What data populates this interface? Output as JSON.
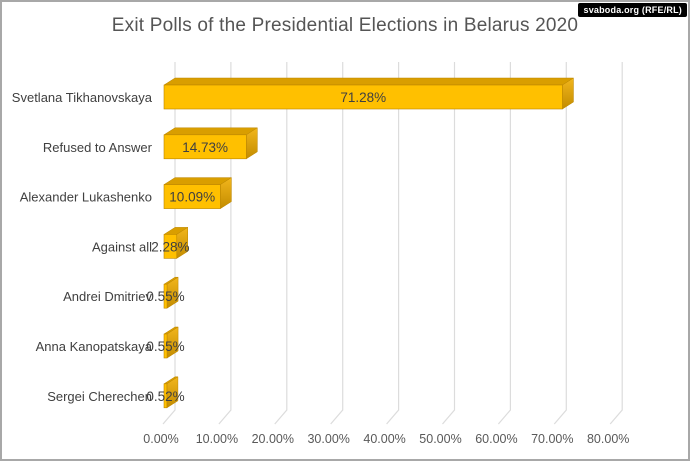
{
  "page": {
    "watermark": "svaboda.org (RFE/RL)"
  },
  "chart_data": {
    "type": "bar",
    "orientation": "horizontal",
    "style": "3d",
    "title": "Exit Polls of the Presidential Elections in Belarus 2020",
    "categories": [
      "Svetlana Tikhanovskaya",
      "Refused to Answer",
      "Alexander Lukashenko",
      "Against all",
      "Andrei Dmitriev",
      "Anna Kanopatskaya",
      "Sergei Cherechen"
    ],
    "values": [
      71.28,
      14.73,
      10.09,
      2.28,
      0.55,
      0.55,
      0.52
    ],
    "value_labels": [
      "71.28%",
      "14.73%",
      "10.09%",
      "2.28%",
      "0.55%",
      "0.55%",
      "0.52%"
    ],
    "x_tick_labels": [
      "0.00%",
      "10.00%",
      "20.00%",
      "30.00%",
      "40.00%",
      "50.00%",
      "60.00%",
      "70.00%",
      "80.00%"
    ],
    "xlim": [
      0,
      80
    ],
    "xlabel": "",
    "ylabel": "",
    "grid": true,
    "legend": false,
    "colors": {
      "bar_face": "#FFC000",
      "bar_top": "#D99E00",
      "bar_side_light": "#F2B61C",
      "bar_side_dark": "#C38C00",
      "bar_outline": "#BC8600",
      "gridline": "#DCDCDC",
      "label_text": "#404040",
      "tick_text": "#595959",
      "title_text": "#555555",
      "watermark_bg": "#000000",
      "watermark_text": "#FFFFFF"
    }
  }
}
